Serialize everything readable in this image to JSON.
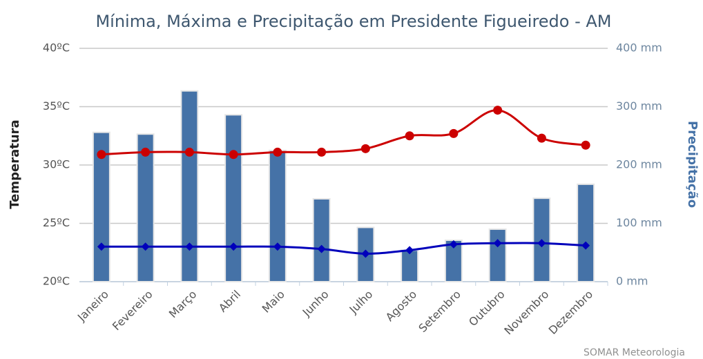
{
  "chart_data": {
    "type": "bar-line",
    "title": "Mínima, Máxima e Precipitação em Presidente Figueiredo - AM",
    "y_label": "Temperatura",
    "y2_label": "Precipitação",
    "credit": "SOMAR Meteorologia",
    "categories": [
      "Janeiro",
      "Fevereiro",
      "Março",
      "Abril",
      "Maio",
      "Junho",
      "Julho",
      "Agosto",
      "Setembro",
      "Outubro",
      "Novembro",
      "Dezembro"
    ],
    "ylim": [
      20,
      40
    ],
    "yticks": [
      {
        "value": 20,
        "label": "20ºC"
      },
      {
        "value": 25,
        "label": "25ºC"
      },
      {
        "value": 30,
        "label": "30ºC"
      },
      {
        "value": 35,
        "label": "35ºC"
      },
      {
        "value": 40,
        "label": "40ºC"
      }
    ],
    "y2lim": [
      0,
      400
    ],
    "y2ticks": [
      {
        "value": 0,
        "label": "0 mm"
      },
      {
        "value": 100,
        "label": "100 mm"
      },
      {
        "value": 200,
        "label": "200 mm"
      },
      {
        "value": 300,
        "label": "300 mm"
      },
      {
        "value": 400,
        "label": "400 mm"
      }
    ],
    "grid": true,
    "series": [
      {
        "type": "bar",
        "axis": "y2",
        "color": "#4572a7",
        "values": [
          256,
          253,
          327,
          286,
          225,
          142,
          93,
          54,
          71,
          90,
          143,
          167
        ]
      },
      {
        "type": "line",
        "color": "#cc0000",
        "marker": "circle",
        "values": [
          30.9,
          31.1,
          31.1,
          30.9,
          31.1,
          31.1,
          31.4,
          32.5,
          32.7,
          34.7,
          32.3,
          31.7
        ]
      },
      {
        "type": "line",
        "color": "#0000bb",
        "marker": "diamond",
        "values": [
          23.0,
          23.0,
          23.0,
          23.0,
          23.0,
          22.8,
          22.4,
          22.7,
          23.2,
          23.3,
          23.3,
          23.1
        ]
      }
    ]
  }
}
